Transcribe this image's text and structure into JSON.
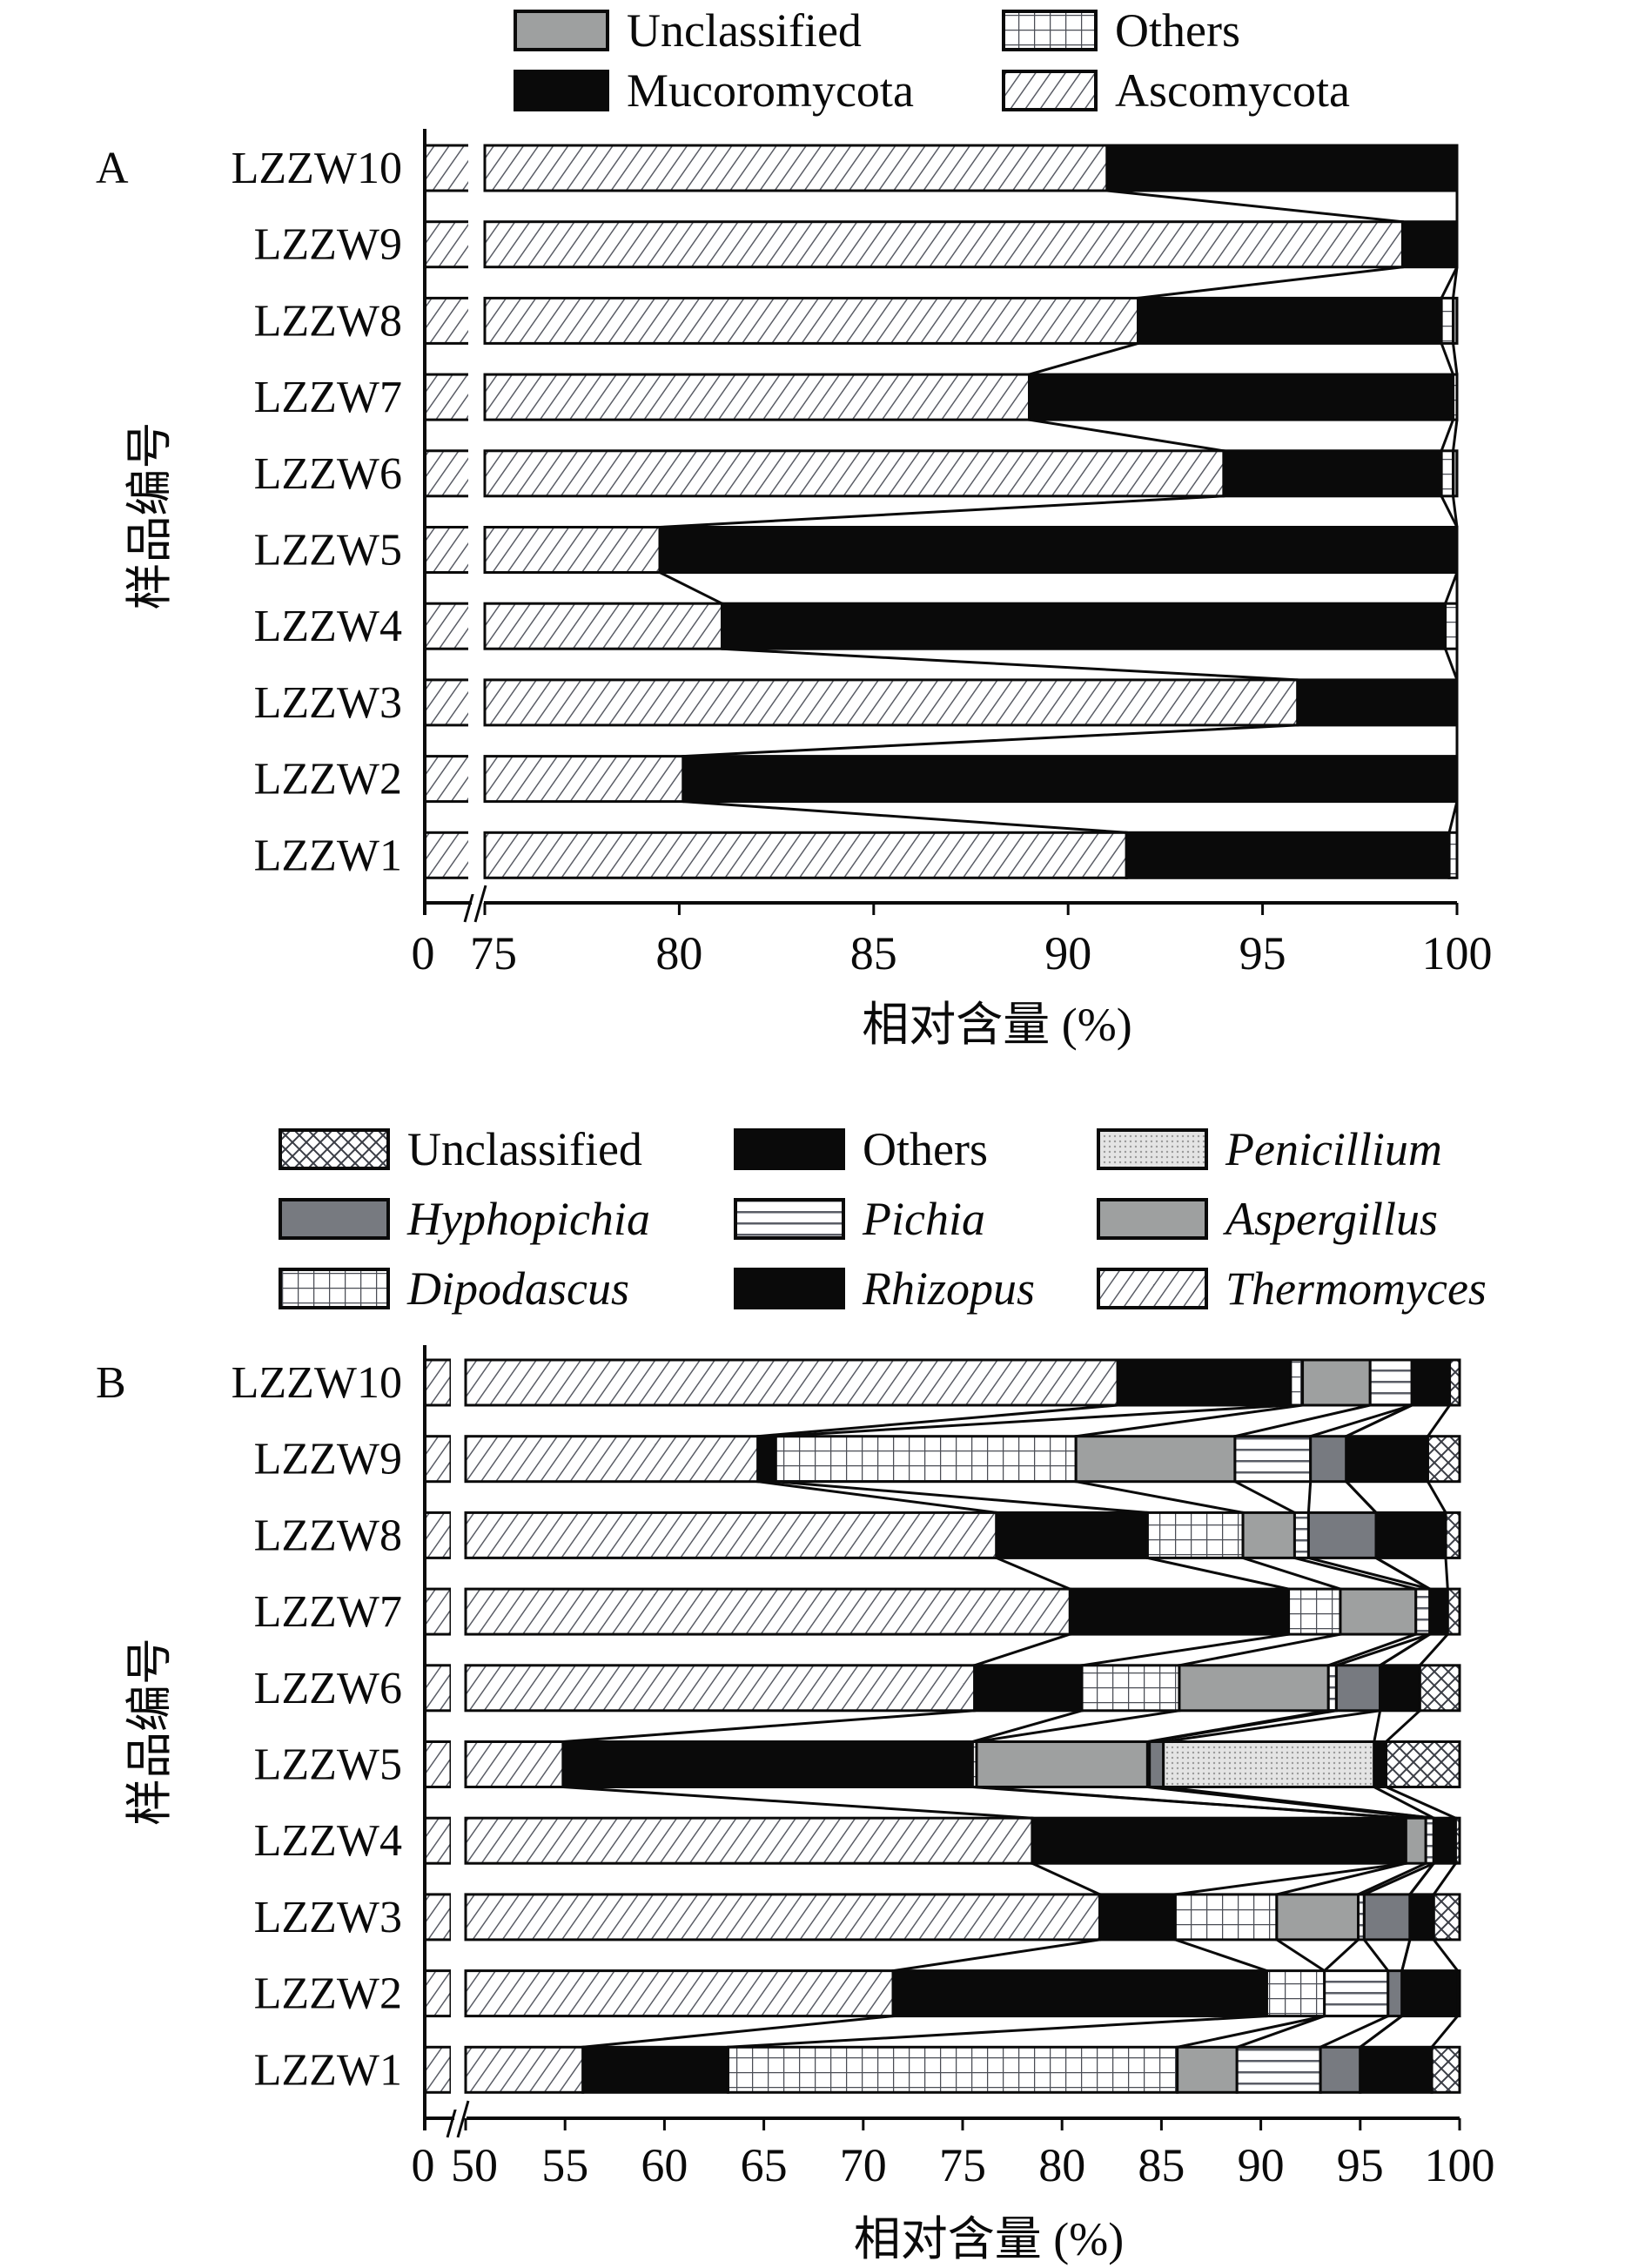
{
  "chart_data": [
    {
      "panel": "A",
      "type": "bar",
      "orientation": "horizontal",
      "stacked": true,
      "title": "",
      "xlabel": "相对含量 (%)",
      "ylabel": "样品编号",
      "xlim": [
        75,
        100
      ],
      "axis_break": true,
      "xticks": [
        "0",
        "75",
        "80",
        "85",
        "90",
        "95",
        "100"
      ],
      "categories": [
        "LZZW10",
        "LZZW9",
        "LZZW8",
        "LZZW7",
        "LZZW6",
        "LZZW5",
        "LZZW4",
        "LZZW3",
        "LZZW2",
        "LZZW1"
      ],
      "legend": [
        "Unclassified",
        "Others",
        "Mucoromycota",
        "Ascomycota"
      ],
      "legend_position": "top",
      "stack_order": [
        "Ascomycota",
        "Mucoromycota",
        "Others",
        "Unclassified"
      ],
      "series": [
        {
          "name": "Ascomycota",
          "pattern": "diagonal-hatch",
          "values": [
            91.0,
            98.6,
            91.8,
            89.0,
            94.0,
            79.5,
            81.1,
            95.9,
            80.1,
            91.5
          ]
        },
        {
          "name": "Mucoromycota",
          "pattern": "solid-black",
          "values": [
            9.0,
            1.4,
            7.8,
            10.9,
            5.6,
            20.5,
            18.6,
            4.1,
            19.9,
            8.3
          ]
        },
        {
          "name": "Others",
          "pattern": "grid",
          "values": [
            0.0,
            0.0,
            0.3,
            0.1,
            0.3,
            0.0,
            0.3,
            0.0,
            0.0,
            0.2
          ]
        },
        {
          "name": "Unclassified",
          "pattern": "solid-gray",
          "values": [
            0.0,
            0.0,
            0.1,
            0.0,
            0.1,
            0.0,
            0.0,
            0.0,
            0.0,
            0.0
          ]
        }
      ]
    },
    {
      "panel": "B",
      "type": "bar",
      "orientation": "horizontal",
      "stacked": true,
      "title": "",
      "xlabel": "相对含量 (%)",
      "ylabel": "样品编号",
      "xlim": [
        50,
        100
      ],
      "axis_break": true,
      "xticks": [
        "0",
        "50",
        "55",
        "60",
        "65",
        "70",
        "75",
        "80",
        "85",
        "90",
        "95",
        "100"
      ],
      "categories": [
        "LZZW10",
        "LZZW9",
        "LZZW8",
        "LZZW7",
        "LZZW6",
        "LZZW5",
        "LZZW4",
        "LZZW3",
        "LZZW2",
        "LZZW1"
      ],
      "legend": [
        "Unclassified",
        "Others",
        "Penicillium",
        "Hyphopichia",
        "Pichia",
        "Aspergillus",
        "Dipodascus",
        "Rhizopus",
        "Thermomyces"
      ],
      "legend_italic": [
        "Penicillium",
        "Hyphopichia",
        "Pichia",
        "Aspergillus",
        "Dipodascus",
        "Rhizopus",
        "Thermomyces"
      ],
      "legend_position": "top",
      "stack_order": [
        "Thermomyces",
        "Rhizopus",
        "Dipodascus",
        "Aspergillus",
        "Pichia",
        "Hyphopichia",
        "Penicillium",
        "Others",
        "Unclassified"
      ],
      "series": [
        {
          "name": "Thermomyces",
          "pattern": "diagonal-hatch",
          "values": [
            82.8,
            64.7,
            76.7,
            80.4,
            75.6,
            54.9,
            78.5,
            81.9,
            71.5,
            55.9
          ]
        },
        {
          "name": "Rhizopus",
          "pattern": "solid-black",
          "values": [
            8.7,
            0.9,
            7.6,
            11.0,
            5.4,
            20.6,
            18.8,
            3.8,
            18.8,
            7.3
          ]
        },
        {
          "name": "Dipodascus",
          "pattern": "grid",
          "values": [
            0.6,
            15.1,
            4.8,
            2.6,
            4.9,
            0.2,
            0.0,
            5.1,
            2.9,
            22.6
          ]
        },
        {
          "name": "Aspergillus",
          "pattern": "solid-gray",
          "values": [
            3.4,
            8.0,
            2.6,
            3.8,
            7.5,
            8.6,
            1.0,
            4.1,
            0.0,
            3.0
          ]
        },
        {
          "name": "Pichia",
          "pattern": "horizontal-lines",
          "values": [
            2.1,
            3.8,
            0.7,
            0.7,
            0.4,
            0.1,
            0.4,
            0.3,
            3.2,
            4.2
          ]
        },
        {
          "name": "Hyphopichia",
          "pattern": "solid-dark-gray",
          "values": [
            0.0,
            1.8,
            3.4,
            0.0,
            2.2,
            0.7,
            0.0,
            2.3,
            0.7,
            2.0
          ]
        },
        {
          "name": "Penicillium",
          "pattern": "dotted-light",
          "values": [
            0.0,
            0.0,
            0.0,
            0.0,
            0.0,
            10.6,
            0.0,
            0.0,
            0.0,
            0.0
          ]
        },
        {
          "name": "Others",
          "pattern": "solid-black",
          "values": [
            1.9,
            4.1,
            3.5,
            0.9,
            2.0,
            0.6,
            1.1,
            1.2,
            2.8,
            3.6
          ]
        },
        {
          "name": "Unclassified",
          "pattern": "crosshatch",
          "values": [
            0.5,
            1.6,
            0.7,
            0.6,
            2.0,
            3.7,
            0.2,
            1.3,
            0.1,
            1.4
          ]
        }
      ]
    }
  ],
  "panels": {
    "A": {
      "letter": "A",
      "xlabel": "相对含量 (%)",
      "ylabel": "样品编号"
    },
    "B": {
      "letter": "B",
      "xlabel": "相对含量 (%)",
      "ylabel": "样品编号"
    }
  },
  "styles": {
    "black": "#0a0a0a",
    "gray": "#9ea0a0",
    "dark_gray": "#777a80",
    "light_gray": "#d8d8d8",
    "line_gray": "#6d7078"
  }
}
